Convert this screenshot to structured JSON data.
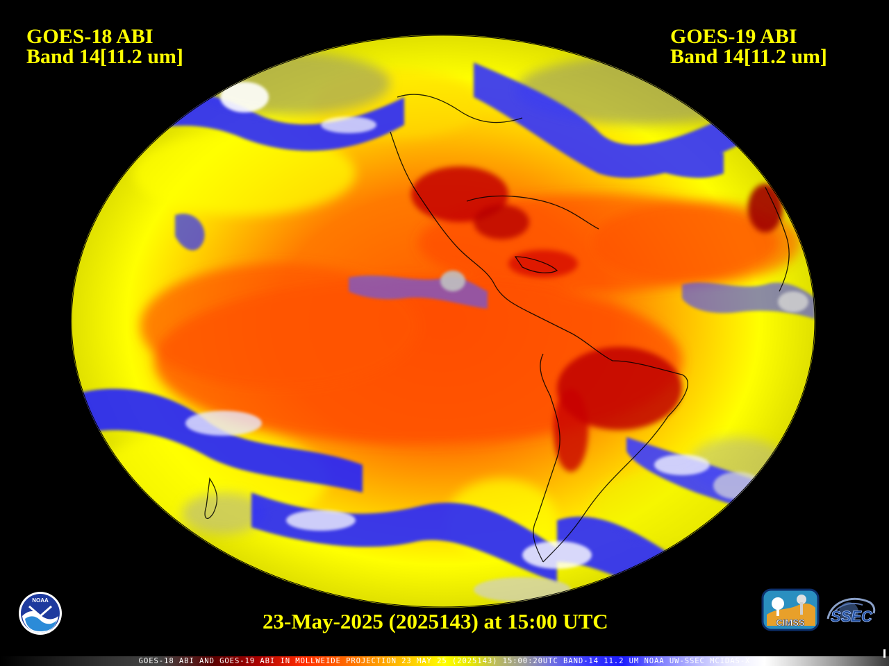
{
  "title_left": {
    "line1": "GOES-18 ABI",
    "line2": "Band 14[11.2 um]"
  },
  "title_right": {
    "line1": "GOES-19 ABI",
    "line2": "Band 14[11.2 um]"
  },
  "timestamp": "23-May-2025 (2025143) at 15:00 UTC",
  "footer": "GOES-18 ABI AND GOES-19 ABI IN MOLLWEIDE PROJECTION 23 MAY 25 (2025143) 15:00:20UTC BAND-14 11.2 UM NOAA UW-SSEC MCIDAS-X",
  "logos": {
    "noaa": "NOAA",
    "cimss": "CIMSS",
    "ssec": "SSEC"
  },
  "colors": {
    "text": "#ffff00",
    "background": "#000000",
    "warm": "#ff5000",
    "hot": "#c80000",
    "mild": "#ffff00",
    "cold": "#2020ff",
    "coldest": "#ffffff"
  }
}
